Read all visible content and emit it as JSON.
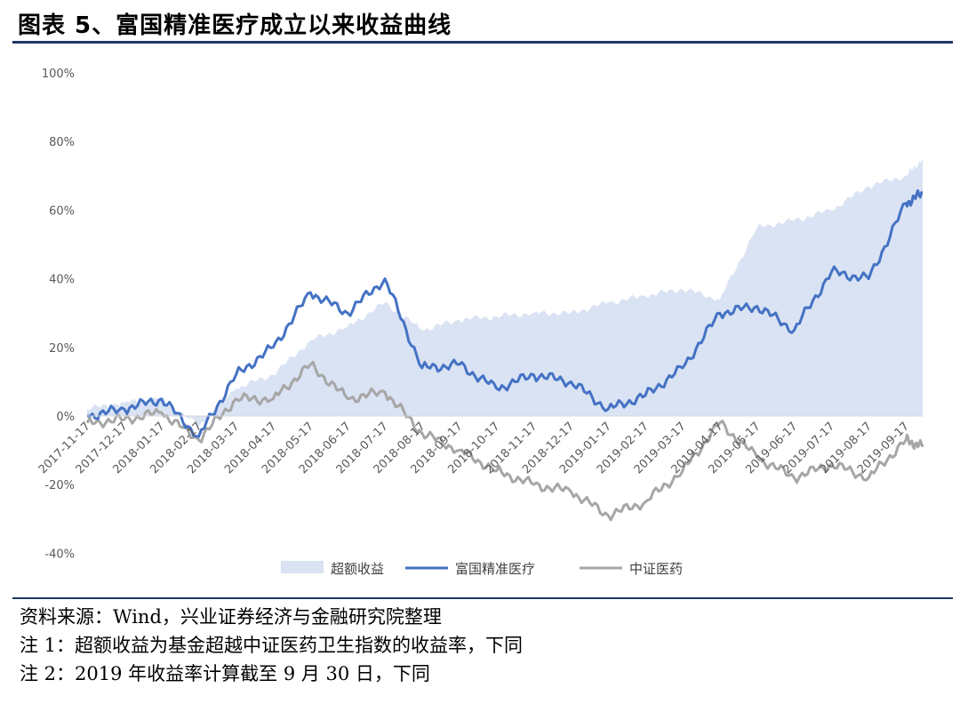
{
  "title": "图表 5、富国精准医疗成立以来收益曲线",
  "notes": [
    "资料来源：Wind，兴业证券经济与金融研究院整理",
    "注 1：超额收益为基金超越中证医药卫生指数的收益率，下同",
    "注 2：2019 年收益率计算截至 9 月 30 日，下同"
  ],
  "colors": {
    "excess": "#dae3f3",
    "fund": "#4472c4",
    "index": "#a6a6a6",
    "rule": "#1f3864"
  },
  "chart_data": {
    "type": "line",
    "ylim": [
      -40,
      100
    ],
    "y_ticks": [
      "100%",
      "80%",
      "60%",
      "40%",
      "20%",
      "0%",
      "-20%",
      "-40%"
    ],
    "y_tick_values": [
      100,
      80,
      60,
      40,
      20,
      0,
      -20,
      -40
    ],
    "x_tick_labels": [
      "2017-11-17",
      "2017-12-17",
      "2018-01-17",
      "2018-02-17",
      "2018-03-17",
      "2018-04-17",
      "2018-05-17",
      "2018-06-17",
      "2018-07-17",
      "2018-08-17",
      "2018-09-17",
      "2018-10-17",
      "2018-11-17",
      "2018-12-17",
      "2019-01-17",
      "2019-02-17",
      "2019-03-17",
      "2019-04-17",
      "2019-05-17",
      "2019-06-17",
      "2019-07-17",
      "2019-08-17",
      "2019-09-17"
    ],
    "x_months": [
      0,
      1,
      2,
      3,
      4,
      5,
      6,
      7,
      8,
      9,
      10,
      11,
      12,
      13,
      14,
      15,
      16,
      17,
      18,
      19,
      20,
      21,
      22,
      22.45
    ],
    "series": [
      {
        "name": "超额收益",
        "kind": "area",
        "values": [
          2,
          4,
          5,
          -3,
          8,
          12,
          22,
          26,
          33,
          25,
          28,
          29,
          30,
          30,
          33,
          35,
          37,
          34,
          55,
          57,
          60,
          67,
          70,
          75
        ]
      },
      {
        "name": "富国精准医疗",
        "kind": "line",
        "values": [
          0,
          2,
          5,
          -6,
          12,
          20,
          36,
          30,
          40,
          14,
          15,
          8,
          12,
          10,
          2,
          6,
          14,
          30,
          32,
          25,
          42,
          40,
          62,
          65
        ]
      },
      {
        "name": "中证医药",
        "kind": "line",
        "values": [
          -2,
          -1,
          1,
          -7,
          5,
          5,
          15,
          5,
          7,
          -5,
          -10,
          -16,
          -20,
          -22,
          -29,
          -25,
          -16,
          -2,
          -12,
          -18,
          -14,
          -18,
          -7,
          -9
        ]
      }
    ]
  }
}
